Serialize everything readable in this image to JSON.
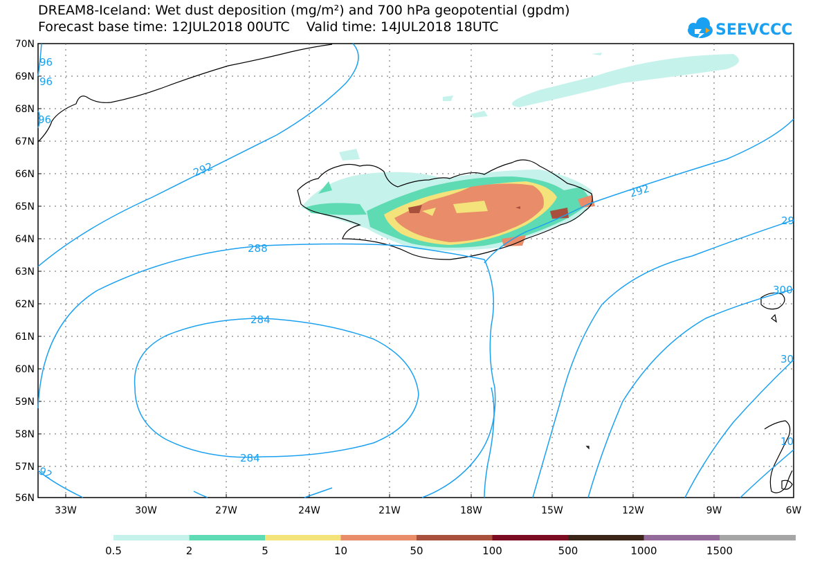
{
  "title": {
    "line1": "DREAM8-Iceland: Wet dust deposition (mg/m²) and 700 hPa geopotential (gpdm)",
    "line2": "Forecast base time: 12JUL2018 00UTC    Valid time: 14JUL2018 18UTC"
  },
  "logo": {
    "text": "SEEVCCC",
    "color": "#1aa0f0"
  },
  "map": {
    "lat_ticks": [
      "70N",
      "69N",
      "68N",
      "67N",
      "66N",
      "65N",
      "64N",
      "63N",
      "62N",
      "61N",
      "60N",
      "59N",
      "58N",
      "57N",
      "56N"
    ],
    "lon_ticks": [
      "33W",
      "30W",
      "27W",
      "24W",
      "21W",
      "18W",
      "15W",
      "12W",
      "9W",
      "6W"
    ],
    "contour_color": "#1aa0f0",
    "contour_labels": [
      "96",
      "96",
      "96",
      "292",
      "292",
      "288",
      "284",
      "284",
      "92",
      "29",
      "300",
      "30",
      "10"
    ]
  },
  "legend": {
    "colors": [
      "#c6f2ec",
      "#5fdbb4",
      "#f4e37a",
      "#e88c6a",
      "#a8503c",
      "#7a0d22",
      "#3a2518",
      "#946a9a",
      "#a6a6a6"
    ],
    "labels": [
      "0.5",
      "2",
      "5",
      "10",
      "50",
      "100",
      "500",
      "1000",
      "1500"
    ]
  }
}
